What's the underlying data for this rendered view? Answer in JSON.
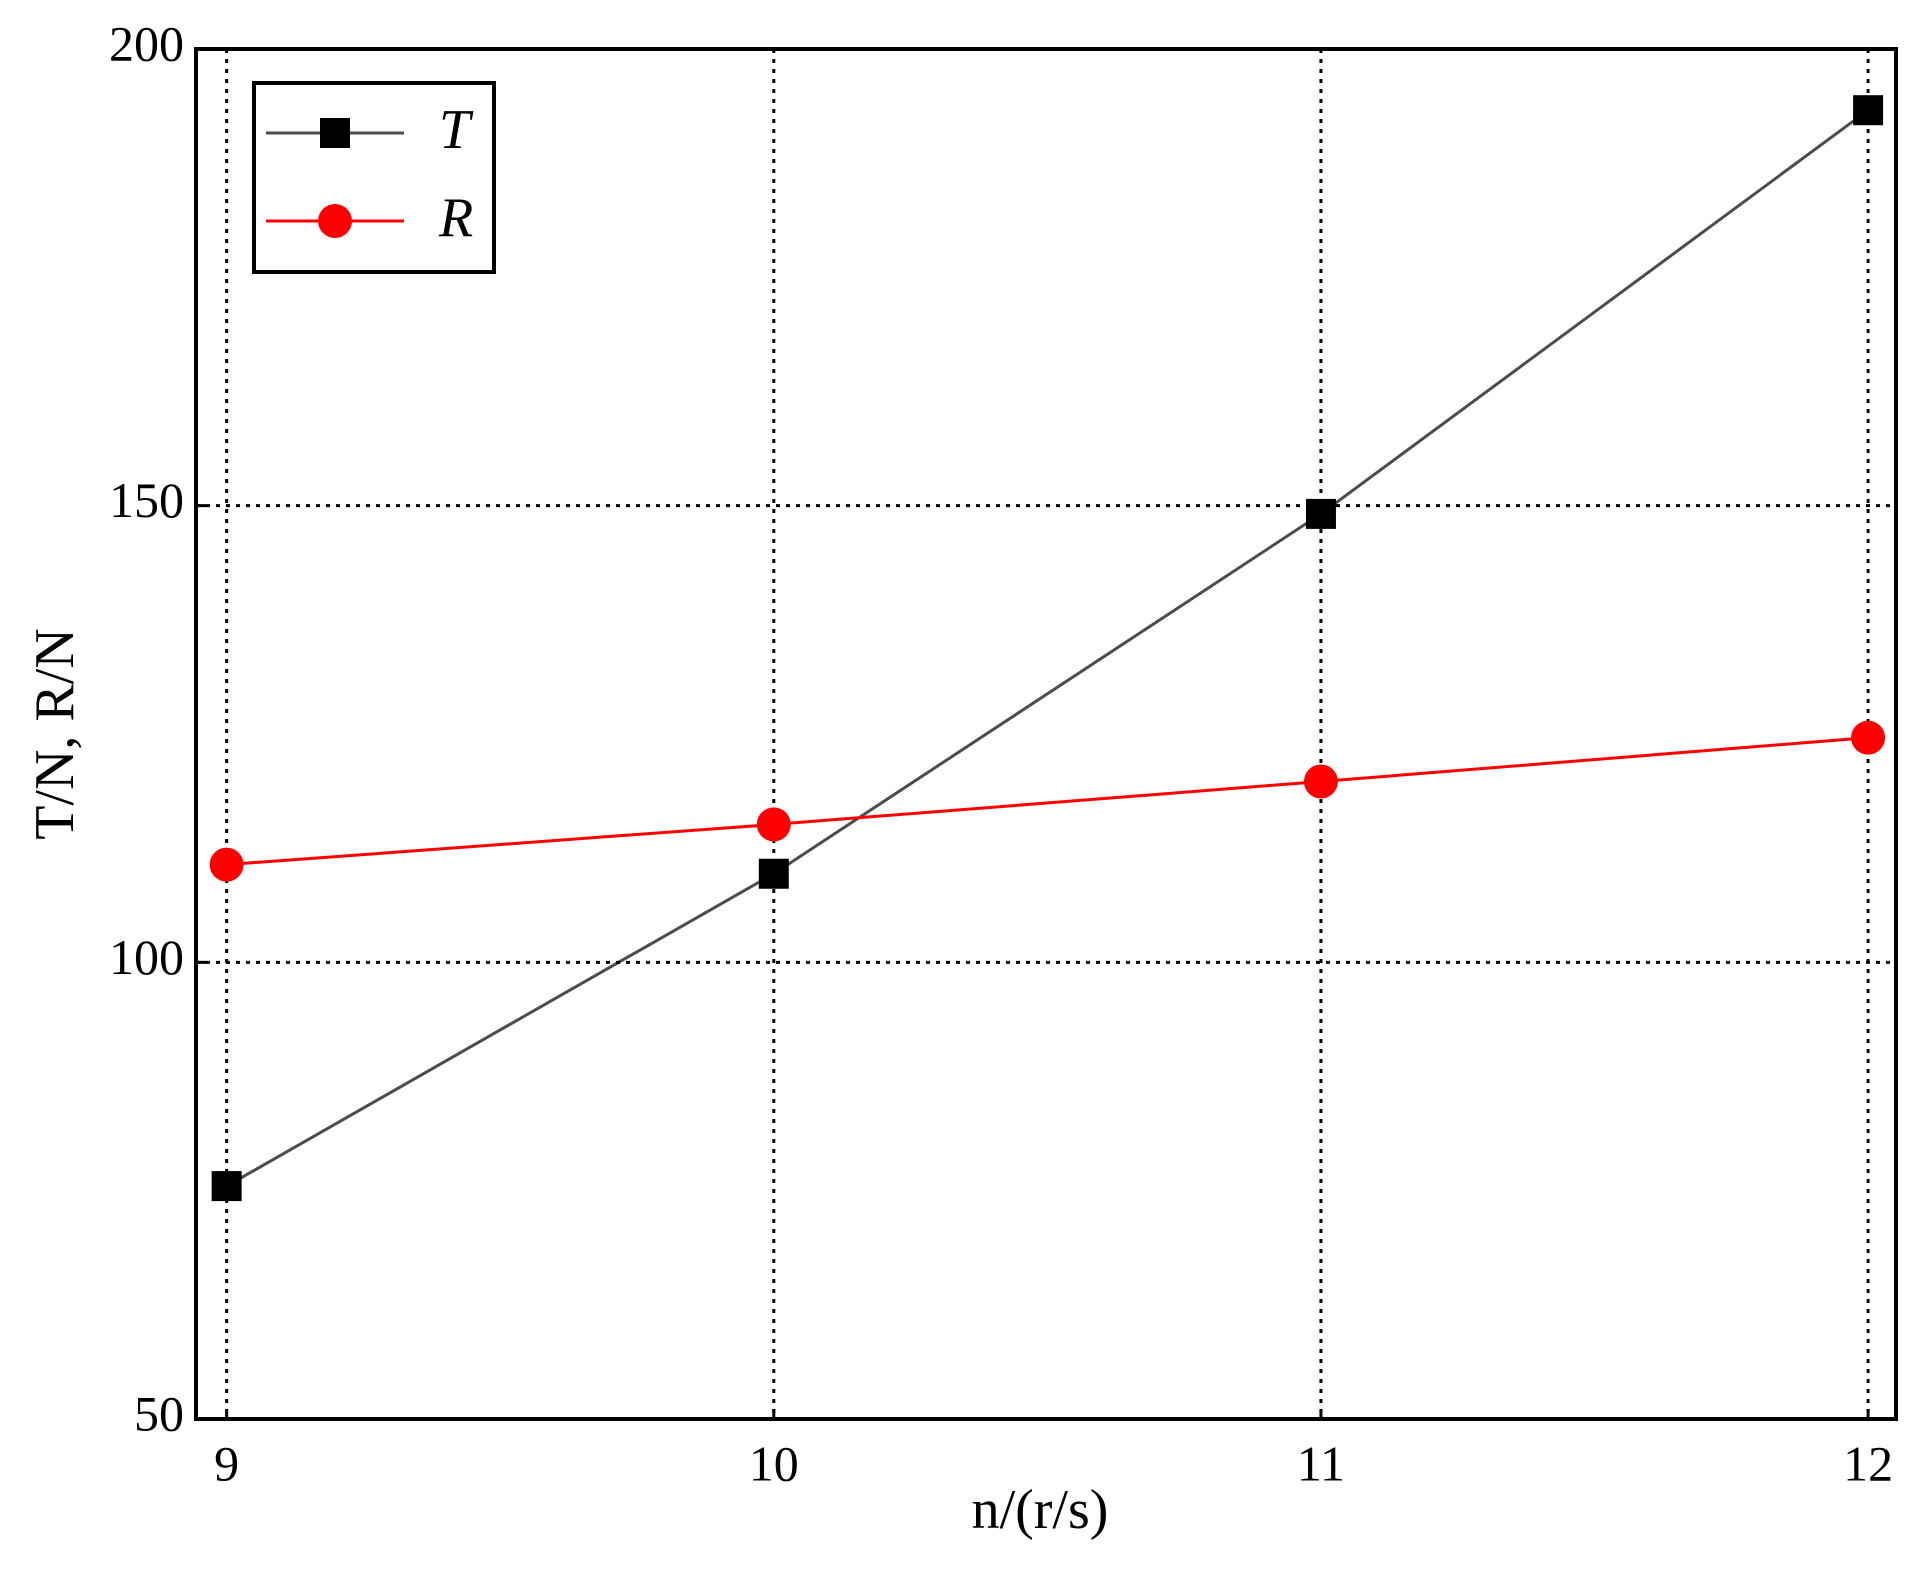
{
  "chart_data": {
    "type": "line",
    "x_label": "n/(r/s)",
    "y_label": "T/N, R/N",
    "x": [
      9,
      10,
      11,
      12
    ],
    "series": [
      {
        "name": "T",
        "color": "#000000",
        "marker": "square",
        "values": [
          75.5,
          109.7,
          149.1,
          193.3
        ]
      },
      {
        "name": "R",
        "color": "#ff0000",
        "marker": "circle",
        "values": [
          110.7,
          115.1,
          119.8,
          124.6
        ]
      }
    ],
    "xlim": [
      8.944,
      12.051
    ],
    "xticks": [
      9,
      10,
      11,
      12
    ],
    "ylim": [
      50,
      200
    ],
    "yticks": [
      50,
      100,
      150,
      200
    ],
    "grid": true,
    "legend": "upper left"
  }
}
